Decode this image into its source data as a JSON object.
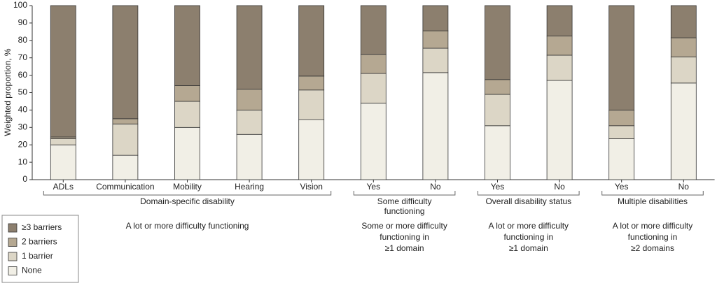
{
  "chart_data": {
    "type": "stacked_bar",
    "ylabel": "Weighted proportion, %",
    "ylim": [
      0,
      100
    ],
    "yticks": [
      0,
      10,
      20,
      30,
      40,
      50,
      60,
      70,
      80,
      90,
      100
    ],
    "groups": [
      {
        "label": [
          "Domain-specific disability"
        ],
        "note": [
          "A lot or more difficulty functioning"
        ],
        "categories": [
          "ADLs",
          "Communication",
          "Mobility",
          "Hearing",
          "Vision"
        ]
      },
      {
        "label": [
          "Some difficulty",
          "functioning"
        ],
        "note": [
          "Some or more difficulty",
          "functioning in",
          "≥1 domain"
        ],
        "categories": [
          "Yes",
          "No"
        ]
      },
      {
        "label": [
          "Overall disability status"
        ],
        "note": [
          "A lot or more difficulty",
          "functioning in",
          "≥1 domain"
        ],
        "categories": [
          "Yes",
          "No"
        ]
      },
      {
        "label": [
          "Multiple disabilities"
        ],
        "note": [
          "A lot or more difficulty",
          "functioning in",
          "≥2 domains"
        ],
        "categories": [
          "Yes",
          "No"
        ]
      }
    ],
    "series": [
      {
        "name": "None",
        "color": "#f1efe6",
        "values": [
          20,
          14,
          30,
          26,
          34.5,
          44,
          61.5,
          31,
          57,
          23.5,
          55.5
        ]
      },
      {
        "name": "1 barrier",
        "color": "#dcd6c6",
        "values": [
          3.5,
          18,
          15,
          14,
          17,
          17,
          14,
          18,
          14.5,
          7.5,
          15
        ]
      },
      {
        "name": "2 barriers",
        "color": "#b5a892",
        "values": [
          1,
          3,
          9,
          12,
          8,
          11,
          10,
          8.5,
          11,
          9,
          11
        ]
      },
      {
        "name": "≥3 barriers",
        "color": "#8c7f6e",
        "values": [
          75.5,
          65,
          46,
          48,
          40.5,
          28,
          14.5,
          42.5,
          17.5,
          60,
          18.5
        ]
      }
    ]
  }
}
